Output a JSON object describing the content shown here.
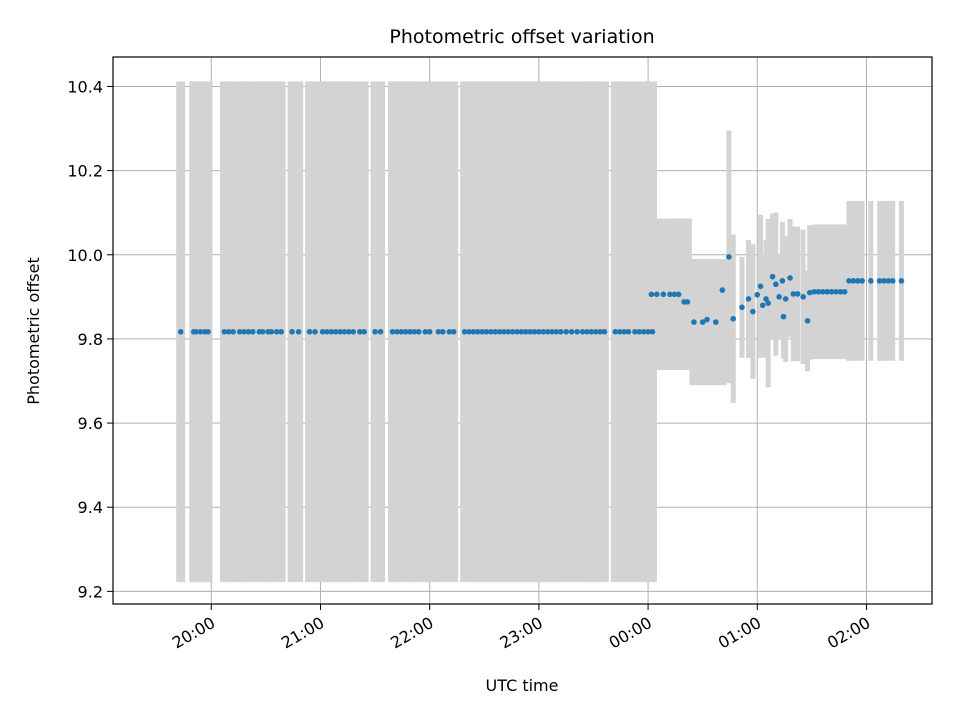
{
  "chart_data": {
    "type": "scatter",
    "title": "Photometric offset variation",
    "xlabel": "UTC time",
    "ylabel": "Photometric offset",
    "x_unit": "hours (UTC, 24+ = next day)",
    "xlim": [
      19.1,
      26.6
    ],
    "ylim": [
      9.17,
      10.47
    ],
    "yticks": [
      9.2,
      9.4,
      9.6,
      9.8,
      10.0,
      10.2,
      10.4
    ],
    "ytick_labels": [
      "9.2",
      "9.4",
      "9.6",
      "9.8",
      "10.0",
      "10.2",
      "10.4"
    ],
    "xticks": [
      20,
      21,
      22,
      23,
      24,
      25,
      26
    ],
    "xtick_labels": [
      "20:00",
      "21:00",
      "22:00",
      "23:00",
      "00:00",
      "01:00",
      "02:00"
    ],
    "grid": true,
    "marker_color": "#1f77b4",
    "errorbar_color": "#d3d3d3",
    "error_groups": [
      {
        "x": [
          19.72,
          19.84,
          19.86,
          19.9,
          19.94,
          19.97
        ],
        "y": 9.817,
        "err": 0.595
      },
      {
        "x": [
          20.12,
          20.16,
          20.2,
          20.26,
          20.3,
          20.34,
          20.38,
          20.44,
          20.47,
          20.52,
          20.55,
          20.6,
          20.64,
          20.74,
          20.8,
          20.9,
          20.95,
          21.02,
          21.06,
          21.1,
          21.14,
          21.18,
          21.22,
          21.26,
          21.3,
          21.36,
          21.4,
          21.5,
          21.55,
          21.66,
          21.7,
          21.74,
          21.78,
          21.82,
          21.86,
          21.9,
          21.96,
          22.0,
          22.08,
          22.12,
          22.18,
          22.22
        ],
        "y": 9.817,
        "err": 0.595
      },
      {
        "x": [
          22.32,
          22.36,
          22.4,
          22.44,
          22.48,
          22.52,
          22.56,
          22.6,
          22.64,
          22.68,
          22.72,
          22.76,
          22.8,
          22.84,
          22.88,
          22.92,
          22.96,
          23.0,
          23.04,
          23.08,
          23.12,
          23.16,
          23.2,
          23.25,
          23.3,
          23.35,
          23.4,
          23.44,
          23.48,
          23.52,
          23.56,
          23.6,
          23.7,
          23.74,
          23.78,
          23.82,
          23.88,
          23.92,
          23.96,
          24.0,
          24.04
        ],
        "y": 9.817,
        "err": 0.595
      },
      {
        "x": [
          24.03,
          24.08,
          24.14,
          24.2,
          24.24,
          24.28,
          24.33,
          24.36
        ],
        "y": 9.906,
        "err": 0.18
      },
      {
        "x": [
          24.42,
          24.5,
          24.54,
          24.62,
          24.68
        ],
        "y": 9.84,
        "err": 0.15
      }
    ],
    "points": [
      [
        19.72,
        9.817
      ],
      [
        19.84,
        9.817
      ],
      [
        19.86,
        9.817
      ],
      [
        19.9,
        9.817
      ],
      [
        19.94,
        9.817
      ],
      [
        19.97,
        9.817
      ],
      [
        20.12,
        9.817
      ],
      [
        20.16,
        9.817
      ],
      [
        20.2,
        9.817
      ],
      [
        20.26,
        9.817
      ],
      [
        20.3,
        9.817
      ],
      [
        20.34,
        9.817
      ],
      [
        20.38,
        9.817
      ],
      [
        20.44,
        9.817
      ],
      [
        20.47,
        9.817
      ],
      [
        20.52,
        9.817
      ],
      [
        20.55,
        9.817
      ],
      [
        20.6,
        9.817
      ],
      [
        20.64,
        9.817
      ],
      [
        20.74,
        9.817
      ],
      [
        20.8,
        9.817
      ],
      [
        20.9,
        9.817
      ],
      [
        20.95,
        9.817
      ],
      [
        21.02,
        9.817
      ],
      [
        21.06,
        9.817
      ],
      [
        21.1,
        9.817
      ],
      [
        21.14,
        9.817
      ],
      [
        21.18,
        9.817
      ],
      [
        21.22,
        9.817
      ],
      [
        21.26,
        9.817
      ],
      [
        21.3,
        9.817
      ],
      [
        21.36,
        9.817
      ],
      [
        21.4,
        9.817
      ],
      [
        21.5,
        9.817
      ],
      [
        21.55,
        9.817
      ],
      [
        21.66,
        9.817
      ],
      [
        21.7,
        9.817
      ],
      [
        21.74,
        9.817
      ],
      [
        21.78,
        9.817
      ],
      [
        21.82,
        9.817
      ],
      [
        21.86,
        9.817
      ],
      [
        21.9,
        9.817
      ],
      [
        21.96,
        9.817
      ],
      [
        22.0,
        9.817
      ],
      [
        22.08,
        9.817
      ],
      [
        22.12,
        9.817
      ],
      [
        22.18,
        9.817
      ],
      [
        22.22,
        9.817
      ],
      [
        22.32,
        9.817
      ],
      [
        22.36,
        9.817
      ],
      [
        22.4,
        9.817
      ],
      [
        22.44,
        9.817
      ],
      [
        22.48,
        9.817
      ],
      [
        22.52,
        9.817
      ],
      [
        22.56,
        9.817
      ],
      [
        22.6,
        9.817
      ],
      [
        22.64,
        9.817
      ],
      [
        22.68,
        9.817
      ],
      [
        22.72,
        9.817
      ],
      [
        22.76,
        9.817
      ],
      [
        22.8,
        9.817
      ],
      [
        22.84,
        9.817
      ],
      [
        22.88,
        9.817
      ],
      [
        22.92,
        9.817
      ],
      [
        22.96,
        9.817
      ],
      [
        23.0,
        9.817
      ],
      [
        23.04,
        9.817
      ],
      [
        23.08,
        9.817
      ],
      [
        23.12,
        9.817
      ],
      [
        23.16,
        9.817
      ],
      [
        23.2,
        9.817
      ],
      [
        23.25,
        9.817
      ],
      [
        23.3,
        9.817
      ],
      [
        23.35,
        9.817
      ],
      [
        23.4,
        9.817
      ],
      [
        23.44,
        9.817
      ],
      [
        23.48,
        9.817
      ],
      [
        23.52,
        9.817
      ],
      [
        23.56,
        9.817
      ],
      [
        23.6,
        9.817
      ],
      [
        23.7,
        9.817
      ],
      [
        23.74,
        9.817
      ],
      [
        23.78,
        9.817
      ],
      [
        23.82,
        9.817
      ],
      [
        23.88,
        9.817
      ],
      [
        23.92,
        9.817
      ],
      [
        23.96,
        9.817
      ],
      [
        24.0,
        9.817
      ],
      [
        24.04,
        9.817
      ],
      [
        24.03,
        9.906
      ],
      [
        24.08,
        9.906
      ],
      [
        24.14,
        9.906
      ],
      [
        24.2,
        9.906
      ],
      [
        24.24,
        9.906
      ],
      [
        24.28,
        9.906
      ],
      [
        24.33,
        9.888
      ],
      [
        24.36,
        9.888
      ],
      [
        24.42,
        9.84
      ],
      [
        24.5,
        9.84
      ],
      [
        24.54,
        9.846
      ],
      [
        24.62,
        9.84
      ],
      [
        24.68,
        9.916
      ],
      [
        24.74,
        9.995
      ],
      [
        24.78,
        9.848
      ],
      [
        24.86,
        9.875
      ],
      [
        24.92,
        9.895
      ],
      [
        24.96,
        9.865
      ],
      [
        25.0,
        9.905
      ],
      [
        25.03,
        9.925
      ],
      [
        25.05,
        9.88
      ],
      [
        25.08,
        9.895
      ],
      [
        25.1,
        9.885
      ],
      [
        25.14,
        9.948
      ],
      [
        25.17,
        9.93
      ],
      [
        25.2,
        9.9
      ],
      [
        25.23,
        9.938
      ],
      [
        25.26,
        9.895
      ],
      [
        25.3,
        9.945
      ],
      [
        25.24,
        9.853
      ],
      [
        25.33,
        9.907
      ],
      [
        25.37,
        9.907
      ],
      [
        25.42,
        9.9
      ],
      [
        25.46,
        9.843
      ],
      [
        25.48,
        9.91
      ],
      [
        25.52,
        9.912
      ],
      [
        25.56,
        9.912
      ],
      [
        25.6,
        9.912
      ],
      [
        25.64,
        9.912
      ],
      [
        25.68,
        9.912
      ],
      [
        25.72,
        9.912
      ],
      [
        25.76,
        9.912
      ],
      [
        25.8,
        9.912
      ],
      [
        25.84,
        9.938
      ],
      [
        25.88,
        9.938
      ],
      [
        25.92,
        9.938
      ],
      [
        25.96,
        9.938
      ],
      [
        26.04,
        9.938
      ],
      [
        26.12,
        9.938
      ],
      [
        26.16,
        9.938
      ],
      [
        26.2,
        9.938
      ],
      [
        26.24,
        9.938
      ],
      [
        26.32,
        9.938
      ]
    ],
    "point_errors": {
      "24.74": 0.3,
      "24.78": 0.2,
      "24.86": 0.12,
      "24.92": 0.14,
      "24.96": 0.16,
      "25.0": 0.14,
      "25.03": 0.17,
      "25.05": 0.12,
      "25.08": 0.14,
      "25.1": 0.2,
      "25.14": 0.15,
      "25.17": 0.17,
      "25.2": 0.1,
      "25.23": 0.14,
      "25.26": 0.15,
      "25.3": 0.14,
      "25.24": 0.1,
      "25.33": 0.16,
      "25.37": 0.16,
      "25.42": 0.16,
      "25.46": 0.12,
      "25.48": 0.16,
      "25.52": 0.16,
      "25.56": 0.16,
      "25.6": 0.16,
      "25.64": 0.16,
      "25.68": 0.16,
      "25.72": 0.16,
      "25.76": 0.16,
      "25.8": 0.16,
      "25.84": 0.19,
      "25.88": 0.19,
      "25.92": 0.19,
      "25.96": 0.19,
      "26.04": 0.19,
      "26.12": 0.19,
      "26.16": 0.19,
      "26.2": 0.19,
      "26.24": 0.19,
      "26.32": 0.19
    }
  }
}
